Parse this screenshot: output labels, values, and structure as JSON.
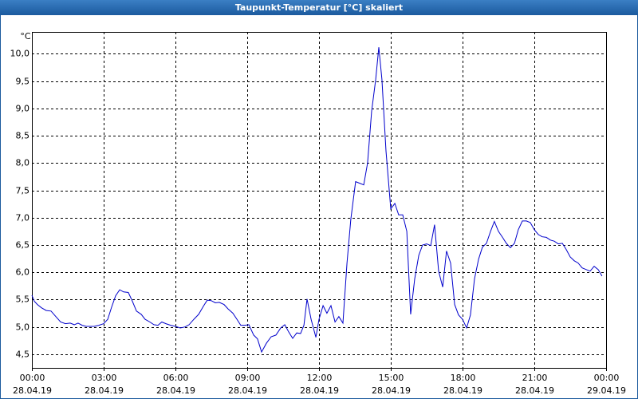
{
  "chart_data": {
    "type": "line",
    "title": "Taupunkt-Temperatur [°C] skaliert",
    "y_unit": "°C",
    "xlim": [
      0,
      24
    ],
    "xticks": [
      {
        "value": 0,
        "label": "00:00"
      },
      {
        "value": 3,
        "label": "03:00"
      },
      {
        "value": 6,
        "label": "06:00"
      },
      {
        "value": 9,
        "label": "09:00"
      },
      {
        "value": 12,
        "label": "12:00"
      },
      {
        "value": 15,
        "label": "15:00"
      },
      {
        "value": 18,
        "label": "18:00"
      },
      {
        "value": 21,
        "label": "21:00"
      },
      {
        "value": 24,
        "label": "00:00"
      }
    ],
    "xtick_dates": [
      "28.04.19",
      "28.04.19",
      "28.04.19",
      "28.04.19",
      "28.04.19",
      "28.04.19",
      "28.04.19",
      "28.04.19",
      "29.04.19"
    ],
    "ylim": [
      4.25,
      10.4
    ],
    "yticks": [
      {
        "value": 4.5,
        "label": "4,5"
      },
      {
        "value": 5.0,
        "label": "5,0"
      },
      {
        "value": 5.5,
        "label": "5,5"
      },
      {
        "value": 6.0,
        "label": "6,0"
      },
      {
        "value": 6.5,
        "label": "6,5"
      },
      {
        "value": 7.0,
        "label": "7,0"
      },
      {
        "value": 7.5,
        "label": "7,5"
      },
      {
        "value": 8.0,
        "label": "8,0"
      },
      {
        "value": 8.5,
        "label": "8,5"
      },
      {
        "value": 9.0,
        "label": "9,0"
      },
      {
        "value": 9.5,
        "label": "9,5"
      },
      {
        "value": 10.0,
        "label": "10,0"
      }
    ],
    "grid": true,
    "x": [
      0,
      0.1,
      0.23,
      0.4,
      0.6,
      0.8,
      1.0,
      1.2,
      1.4,
      1.6,
      1.77,
      1.93,
      2.1,
      2.27,
      2.43,
      2.6,
      2.8,
      3.0,
      3.17,
      3.33,
      3.5,
      3.67,
      3.83,
      4.03,
      4.2,
      4.37,
      4.57,
      4.73,
      4.93,
      5.1,
      5.27,
      5.43,
      5.6,
      5.8,
      6.0,
      6.2,
      6.4,
      6.57,
      6.77,
      6.97,
      7.17,
      7.33,
      7.5,
      7.67,
      7.83,
      8.03,
      8.2,
      8.4,
      8.57,
      8.73,
      8.9,
      9.07,
      9.27,
      9.43,
      9.6,
      9.8,
      10.0,
      10.2,
      10.4,
      10.57,
      10.73,
      10.9,
      11.07,
      11.23,
      11.37,
      11.5,
      11.67,
      11.87,
      12.0,
      12.17,
      12.33,
      12.5,
      12.67,
      12.83,
      13.0,
      13.17,
      13.33,
      13.53,
      13.7,
      13.87,
      14.03,
      14.2,
      14.37,
      14.5,
      14.63,
      14.8,
      15.0,
      15.17,
      15.33,
      15.5,
      15.67,
      15.83,
      16.0,
      16.17,
      16.33,
      16.5,
      16.67,
      16.83,
      17.0,
      17.17,
      17.33,
      17.5,
      17.67,
      17.83,
      18.0,
      18.17,
      18.33,
      18.5,
      18.67,
      18.83,
      19.0,
      19.17,
      19.33,
      19.5,
      19.67,
      19.83,
      20.0,
      20.17,
      20.33,
      20.5,
      20.67,
      20.83,
      21.0,
      21.17,
      21.33,
      21.5,
      21.67,
      21.83,
      22.0,
      22.17,
      22.33,
      22.5,
      22.67,
      22.83,
      23.0,
      23.17,
      23.33,
      23.5,
      23.67,
      23.83
    ],
    "series": [
      {
        "color": "#0000cc",
        "values": [
          5.58,
          5.47,
          5.41,
          5.35,
          5.3,
          5.29,
          5.19,
          5.09,
          5.06,
          5.07,
          5.04,
          5.07,
          5.03,
          5.01,
          5.01,
          5.01,
          5.03,
          5.06,
          5.14,
          5.36,
          5.57,
          5.68,
          5.64,
          5.63,
          5.47,
          5.29,
          5.23,
          5.14,
          5.09,
          5.04,
          5.03,
          5.09,
          5.06,
          5.03,
          5.01,
          4.98,
          5.0,
          5.04,
          5.14,
          5.23,
          5.38,
          5.49,
          5.48,
          5.44,
          5.45,
          5.41,
          5.33,
          5.25,
          5.14,
          5.03,
          5.03,
          5.04,
          4.85,
          4.78,
          4.54,
          4.7,
          4.82,
          4.85,
          4.98,
          5.04,
          4.91,
          4.79,
          4.89,
          4.88,
          5.03,
          5.51,
          5.14,
          4.81,
          5.14,
          5.39,
          5.25,
          5.39,
          5.09,
          5.19,
          5.07,
          6.17,
          6.97,
          7.66,
          7.63,
          7.6,
          8.0,
          8.95,
          9.53,
          10.12,
          9.53,
          8.22,
          7.16,
          7.26,
          7.05,
          7.05,
          6.75,
          5.23,
          5.88,
          6.31,
          6.5,
          6.52,
          6.49,
          6.87,
          6.02,
          5.73,
          6.39,
          6.17,
          5.41,
          5.22,
          5.14,
          4.98,
          5.22,
          5.88,
          6.24,
          6.46,
          6.53,
          6.75,
          6.93,
          6.75,
          6.64,
          6.53,
          6.45,
          6.53,
          6.78,
          6.94,
          6.94,
          6.91,
          6.78,
          6.69,
          6.65,
          6.64,
          6.59,
          6.57,
          6.52,
          6.53,
          6.42,
          6.28,
          6.21,
          6.17,
          6.08,
          6.05,
          6.02,
          6.11,
          6.05,
          5.93
        ]
      }
    ]
  }
}
